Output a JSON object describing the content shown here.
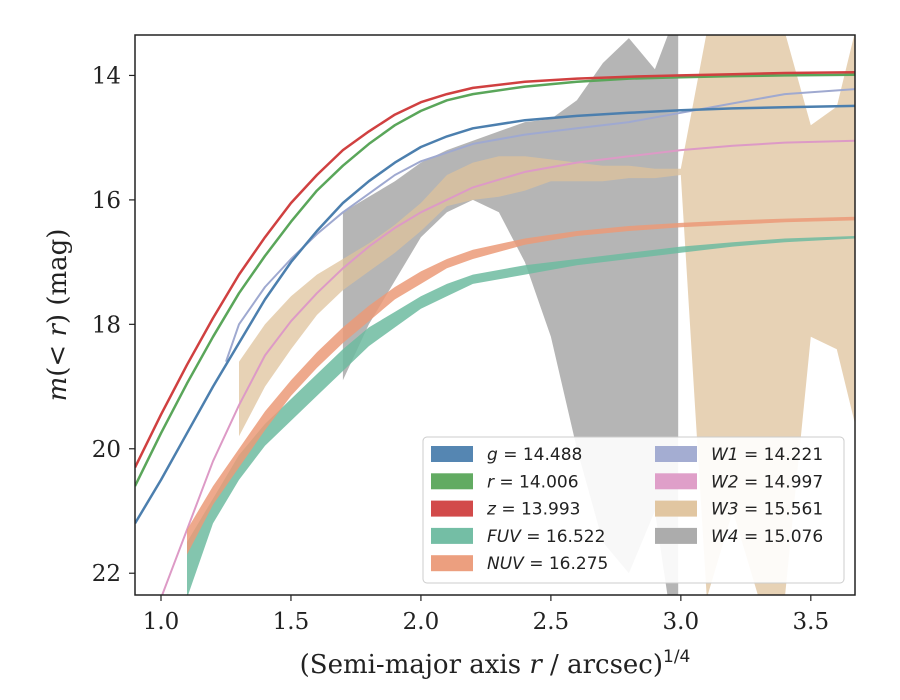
{
  "chart_data": {
    "type": "line",
    "xlabel": "(Semi-major axis r / arcsec)",
    "xlabel_var": "r",
    "xlabel_sup": "1/4",
    "ylabel": "m(< r) (mag)",
    "xlim": [
      0.9,
      3.67
    ],
    "ylim": [
      22.35,
      13.35
    ],
    "y_inverted": true,
    "grid": false,
    "legend_position": "lower-right",
    "xticks": [
      1.0,
      1.5,
      2.0,
      2.5,
      3.0,
      3.5
    ],
    "xtick_labels": [
      "1.0",
      "1.5",
      "2.0",
      "2.5",
      "3.0",
      "3.5"
    ],
    "yticks": [
      14,
      16,
      18,
      20,
      22
    ],
    "ytick_labels": [
      "14",
      "16",
      "18",
      "20",
      "22"
    ],
    "series": [
      {
        "name": "g = 14.488",
        "label_var": "g",
        "label_value": "14.488",
        "kind": "line",
        "color": "#4c7fae",
        "x": [
          0.9,
          1.0,
          1.1,
          1.2,
          1.3,
          1.4,
          1.5,
          1.6,
          1.7,
          1.8,
          1.9,
          2.0,
          2.1,
          2.2,
          2.4,
          2.6,
          2.8,
          3.0,
          3.2,
          3.4,
          3.67
        ],
        "y": [
          21.2,
          20.5,
          19.75,
          19.0,
          18.3,
          17.6,
          17.0,
          16.5,
          16.05,
          15.7,
          15.4,
          15.15,
          14.98,
          14.85,
          14.72,
          14.65,
          14.6,
          14.56,
          14.53,
          14.51,
          14.49
        ]
      },
      {
        "name": "r = 14.006",
        "label_var": "r",
        "label_value": "14.006",
        "kind": "line",
        "color": "#5aa65a",
        "x": [
          0.9,
          1.0,
          1.1,
          1.2,
          1.3,
          1.4,
          1.5,
          1.6,
          1.7,
          1.8,
          1.9,
          2.0,
          2.1,
          2.2,
          2.4,
          2.6,
          2.8,
          3.0,
          3.2,
          3.4,
          3.67
        ],
        "y": [
          20.6,
          19.75,
          18.95,
          18.2,
          17.5,
          16.9,
          16.35,
          15.85,
          15.45,
          15.1,
          14.8,
          14.57,
          14.4,
          14.3,
          14.18,
          14.1,
          14.05,
          14.03,
          14.01,
          14.0,
          13.99
        ]
      },
      {
        "name": "z = 13.993",
        "label_var": "z",
        "label_value": "13.993",
        "kind": "line",
        "color": "#d04040",
        "x": [
          0.9,
          1.0,
          1.1,
          1.2,
          1.3,
          1.4,
          1.5,
          1.6,
          1.7,
          1.8,
          1.9,
          2.0,
          2.1,
          2.2,
          2.4,
          2.6,
          2.8,
          3.0,
          3.2,
          3.4,
          3.67
        ],
        "y": [
          20.3,
          19.45,
          18.65,
          17.9,
          17.2,
          16.6,
          16.05,
          15.6,
          15.2,
          14.9,
          14.63,
          14.43,
          14.3,
          14.2,
          14.1,
          14.05,
          14.02,
          14.0,
          13.98,
          13.96,
          13.95
        ]
      },
      {
        "name": "FUV = 16.522",
        "label_var": "FUV",
        "label_value": "16.522",
        "kind": "band",
        "color": "#6dbba0",
        "x": [
          1.1,
          1.2,
          1.3,
          1.4,
          1.5,
          1.6,
          1.7,
          1.8,
          1.9,
          2.0,
          2.1,
          2.2,
          2.4,
          2.6,
          2.8,
          3.0,
          3.2,
          3.4,
          3.67
        ],
        "y_upper": [
          21.5,
          20.8,
          20.1,
          19.6,
          19.2,
          18.8,
          18.4,
          18.05,
          17.8,
          17.55,
          17.35,
          17.2,
          17.05,
          16.95,
          16.85,
          16.75,
          16.68,
          16.62,
          16.58
        ],
        "y_lower": [
          22.4,
          21.2,
          20.5,
          19.95,
          19.55,
          19.15,
          18.75,
          18.35,
          18.05,
          17.75,
          17.55,
          17.35,
          17.2,
          17.05,
          16.95,
          16.85,
          16.75,
          16.68,
          16.62
        ]
      },
      {
        "name": "NUV = 16.275",
        "label_var": "NUV",
        "label_value": "16.275",
        "kind": "band",
        "color": "#eb9a78",
        "x": [
          1.1,
          1.2,
          1.3,
          1.4,
          1.5,
          1.6,
          1.7,
          1.8,
          1.9,
          2.0,
          2.1,
          2.2,
          2.4,
          2.6,
          2.8,
          3.0,
          3.2,
          3.4,
          3.67
        ],
        "y_upper": [
          21.3,
          20.6,
          20.0,
          19.4,
          18.9,
          18.45,
          18.05,
          17.7,
          17.4,
          17.15,
          16.95,
          16.8,
          16.62,
          16.5,
          16.42,
          16.37,
          16.33,
          16.3,
          16.27
        ],
        "y_lower": [
          21.7,
          20.9,
          20.3,
          19.7,
          19.15,
          18.7,
          18.3,
          17.95,
          17.6,
          17.35,
          17.1,
          16.95,
          16.72,
          16.58,
          16.5,
          16.44,
          16.4,
          16.36,
          16.33
        ]
      },
      {
        "name": "W1 = 14.221",
        "label_var": "W1",
        "label_value": "14.221",
        "kind": "line",
        "color": "#9fa9d0",
        "x": [
          1.25,
          1.3,
          1.4,
          1.5,
          1.6,
          1.7,
          1.8,
          1.9,
          2.0,
          2.2,
          2.4,
          2.6,
          2.8,
          3.0,
          3.2,
          3.4,
          3.67
        ],
        "y": [
          18.6,
          18.0,
          17.4,
          16.95,
          16.55,
          16.2,
          15.9,
          15.6,
          15.38,
          15.1,
          14.95,
          14.85,
          14.75,
          14.6,
          14.45,
          14.3,
          14.22
        ]
      },
      {
        "name": "W2 = 14.997",
        "label_var": "W2",
        "label_value": "14.997",
        "kind": "line",
        "color": "#dd9ac6",
        "x": [
          1.0,
          1.1,
          1.2,
          1.3,
          1.4,
          1.5,
          1.6,
          1.7,
          1.8,
          1.9,
          2.0,
          2.2,
          2.4,
          2.6,
          2.8,
          3.0,
          3.2,
          3.4,
          3.67
        ],
        "y": [
          22.4,
          21.3,
          20.2,
          19.3,
          18.5,
          17.95,
          17.5,
          17.1,
          16.75,
          16.45,
          16.2,
          15.8,
          15.55,
          15.4,
          15.3,
          15.2,
          15.13,
          15.08,
          15.05
        ]
      },
      {
        "name": "W3 = 15.561",
        "label_var": "W3",
        "label_value": "15.561",
        "kind": "band",
        "color": "#dfc39c",
        "x": [
          1.3,
          1.4,
          1.5,
          1.6,
          1.7,
          1.8,
          1.9,
          2.0,
          2.1,
          2.2,
          2.3,
          2.4,
          2.5,
          2.6,
          2.7,
          2.8,
          2.9,
          3.0,
          3.1,
          3.2,
          3.3,
          3.4,
          3.5,
          3.6,
          3.67
        ],
        "y_upper": [
          18.6,
          18.0,
          17.55,
          17.2,
          16.95,
          16.7,
          16.4,
          16.05,
          15.6,
          15.4,
          15.3,
          15.3,
          15.35,
          15.4,
          15.45,
          15.45,
          15.5,
          15.5,
          13.3,
          13.3,
          13.3,
          13.3,
          14.8,
          14.5,
          13.3
        ],
        "y_lower": [
          19.8,
          19.0,
          18.4,
          17.85,
          17.45,
          17.15,
          16.85,
          16.5,
          16.1,
          16.0,
          15.95,
          15.85,
          15.7,
          15.7,
          15.7,
          15.65,
          15.65,
          15.6,
          22.4,
          21.0,
          22.4,
          22.4,
          18.2,
          18.4,
          19.6
        ]
      },
      {
        "name": "W4 = 15.076",
        "label_var": "W4",
        "label_value": "15.076",
        "kind": "band",
        "color": "#a8a8a8",
        "x": [
          1.7,
          1.8,
          1.9,
          2.0,
          2.1,
          2.2,
          2.3,
          2.4,
          2.5,
          2.6,
          2.7,
          2.8,
          2.9,
          2.95,
          2.99
        ],
        "y_upper": [
          16.2,
          15.95,
          15.7,
          15.4,
          15.2,
          15.05,
          14.9,
          14.75,
          14.7,
          14.4,
          13.8,
          13.4,
          13.9,
          13.35,
          13.35
        ],
        "y_lower": [
          18.9,
          18.0,
          17.3,
          16.6,
          16.2,
          16.0,
          16.2,
          17.0,
          18.2,
          20.0,
          21.5,
          22.0,
          21.0,
          22.4,
          22.4
        ]
      }
    ]
  }
}
